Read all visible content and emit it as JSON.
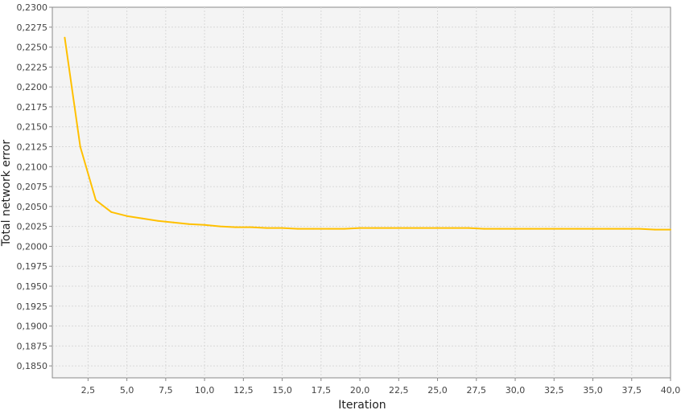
{
  "chart_data": {
    "type": "line",
    "title": "",
    "xlabel": "Iteration",
    "ylabel": "Total network error",
    "xlim": [
      0.2,
      40.0
    ],
    "ylim": [
      0.1835,
      0.23
    ],
    "grid": true,
    "legend": "none",
    "x_ticks": [
      2.5,
      5.0,
      7.5,
      10.0,
      12.5,
      15.0,
      17.5,
      20.0,
      22.5,
      25.0,
      27.5,
      30.0,
      32.5,
      35.0,
      37.5,
      40.0
    ],
    "x_tick_labels": [
      "2,5",
      "5,0",
      "7,5",
      "10,0",
      "12,5",
      "15,0",
      "17,5",
      "20,0",
      "22,5",
      "25,0",
      "27,5",
      "30,0",
      "32,5",
      "35,0",
      "37,5",
      "40,0"
    ],
    "y_ticks": [
      0.185,
      0.1875,
      0.19,
      0.1925,
      0.195,
      0.1975,
      0.2,
      0.2025,
      0.205,
      0.2075,
      0.21,
      0.2125,
      0.215,
      0.2175,
      0.22,
      0.2225,
      0.225,
      0.2275,
      0.23
    ],
    "y_tick_labels": [
      "0,1850",
      "0,1875",
      "0,1900",
      "0,1925",
      "0,1950",
      "0,1975",
      "0,2000",
      "0,2025",
      "0,2050",
      "0,2075",
      "0,2100",
      "0,2125",
      "0,2150",
      "0,2175",
      "0,2200",
      "0,2225",
      "0,2250",
      "0,2275",
      "0,2300"
    ],
    "series": [
      {
        "color": "#FFC000",
        "x": [
          1,
          2,
          3,
          4,
          5,
          6,
          7,
          8,
          9,
          10,
          11,
          12,
          13,
          14,
          15,
          16,
          17,
          18,
          19,
          20,
          21,
          22,
          23,
          24,
          25,
          26,
          27,
          28,
          29,
          30,
          31,
          32,
          33,
          34,
          35,
          36,
          37,
          38,
          39,
          40
        ],
        "y": [
          0.2262,
          0.2125,
          0.2058,
          0.2043,
          0.2038,
          0.2035,
          0.2032,
          0.203,
          0.2028,
          0.2027,
          0.2025,
          0.2024,
          0.2024,
          0.2023,
          0.2023,
          0.2022,
          0.2022,
          0.2022,
          0.2022,
          0.2023,
          0.2023,
          0.2023,
          0.2023,
          0.2023,
          0.2023,
          0.2023,
          0.2023,
          0.2022,
          0.2022,
          0.2022,
          0.2022,
          0.2022,
          0.2022,
          0.2022,
          0.2022,
          0.2022,
          0.2022,
          0.2022,
          0.2021,
          0.2021
        ]
      }
    ]
  }
}
